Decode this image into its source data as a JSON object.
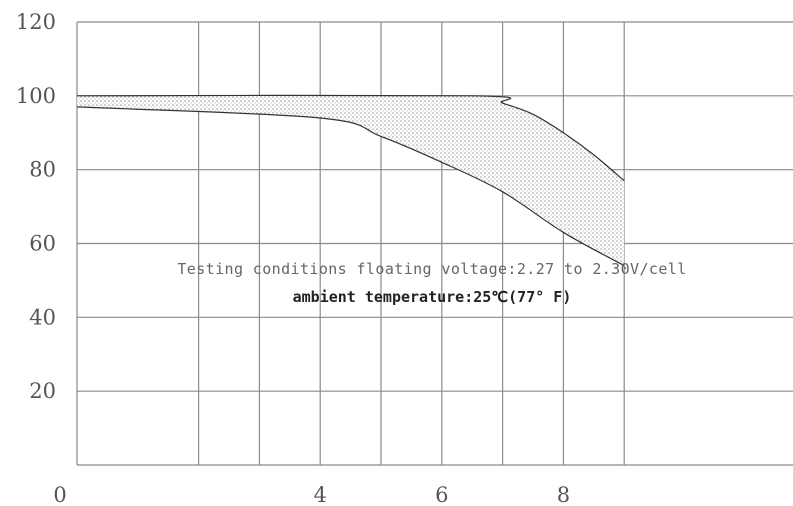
{
  "chart_data": {
    "type": "area",
    "title": "",
    "xlabel": "",
    "ylabel": "",
    "xlim": [
      0,
      9
    ],
    "ylim": [
      0,
      120
    ],
    "grid": true,
    "x_ticks": [
      {
        "value": 0,
        "label": "0"
      },
      {
        "value": 4,
        "label": "4"
      },
      {
        "value": 6,
        "label": "6"
      },
      {
        "value": 8,
        "label": "8"
      }
    ],
    "y_ticks": [
      {
        "value": 20,
        "label": "20"
      },
      {
        "value": 40,
        "label": "40"
      },
      {
        "value": 60,
        "label": "60"
      },
      {
        "value": 80,
        "label": "80"
      },
      {
        "value": 100,
        "label": "100"
      },
      {
        "value": 120,
        "label": "120"
      }
    ],
    "grid_x": [
      0,
      2,
      3,
      4,
      5,
      6,
      7,
      8,
      9
    ],
    "grid_y": [
      0,
      20,
      40,
      60,
      80,
      100,
      120
    ],
    "band": {
      "upper": [
        {
          "x": 0,
          "y": 100
        },
        {
          "x": 6.5,
          "y": 100
        },
        {
          "x": 7,
          "y": 98
        },
        {
          "x": 7.5,
          "y": 95
        },
        {
          "x": 8,
          "y": 90
        },
        {
          "x": 8.5,
          "y": 84
        },
        {
          "x": 9,
          "y": 77
        }
      ],
      "lower": [
        {
          "x": 0,
          "y": 97
        },
        {
          "x": 4,
          "y": 94
        },
        {
          "x": 5,
          "y": 89
        },
        {
          "x": 6,
          "y": 82
        },
        {
          "x": 7,
          "y": 74
        },
        {
          "x": 8,
          "y": 63
        },
        {
          "x": 9,
          "y": 54
        }
      ],
      "fill_color": "#c8c8c8",
      "line_color": "#333333"
    },
    "annotations": [
      "Testing conditions floating voltage:2.27 to 2.30V/cell",
      "ambient temperature:25℃(77° F)"
    ]
  }
}
